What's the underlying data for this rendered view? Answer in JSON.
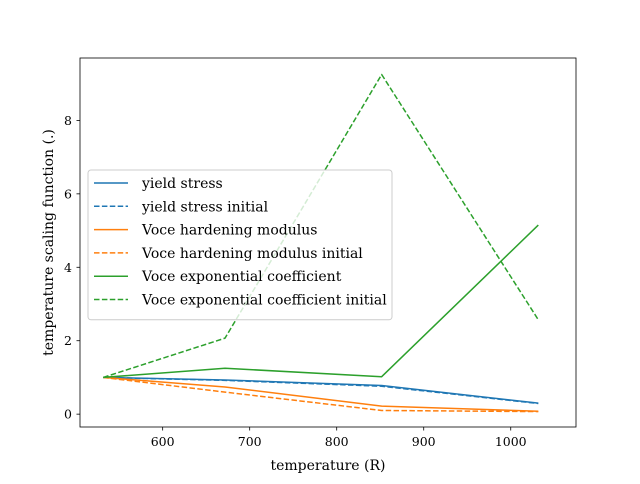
{
  "chart_data": {
    "type": "line",
    "title": "",
    "xlabel": "temperature (R)",
    "ylabel": "temperature scaling function (.)",
    "xlim": [
      505,
      1075
    ],
    "ylim": [
      -0.35,
      9.7
    ],
    "x_ticks": [
      600,
      700,
      800,
      900,
      1000
    ],
    "y_ticks": [
      0,
      2,
      4,
      6,
      8
    ],
    "grid": false,
    "legend_position": "center-left",
    "series": [
      {
        "name": "yield stress",
        "color": "#1f77b4",
        "dash": "solid",
        "x": [
          531.67,
          671.67,
          851.67,
          1031.67
        ],
        "y": [
          1.0,
          0.93,
          0.78,
          0.3
        ]
      },
      {
        "name": "yield stress initial",
        "color": "#1f77b4",
        "dash": "dashed",
        "x": [
          531.67,
          671.67,
          851.67,
          1031.67
        ],
        "y": [
          1.0,
          0.92,
          0.76,
          0.29
        ]
      },
      {
        "name": "Voce hardening modulus",
        "color": "#ff7f0e",
        "dash": "solid",
        "x": [
          531.67,
          671.67,
          851.67,
          1031.67
        ],
        "y": [
          1.0,
          0.74,
          0.22,
          0.08
        ]
      },
      {
        "name": "Voce hardening modulus initial",
        "color": "#ff7f0e",
        "dash": "dashed",
        "x": [
          531.67,
          671.67,
          851.67,
          1031.67
        ],
        "y": [
          1.0,
          0.6,
          0.1,
          0.07
        ]
      },
      {
        "name": "Voce exponential coefficient",
        "color": "#2ca02c",
        "dash": "solid",
        "x": [
          531.67,
          671.67,
          851.67,
          1031.67
        ],
        "y": [
          1.0,
          1.25,
          1.02,
          5.15
        ]
      },
      {
        "name": "Voce exponential coefficient initial",
        "color": "#2ca02c",
        "dash": "dashed",
        "x": [
          531.67,
          671.67,
          851.67,
          1031.67
        ],
        "y": [
          1.0,
          2.07,
          9.25,
          2.57
        ]
      }
    ]
  }
}
